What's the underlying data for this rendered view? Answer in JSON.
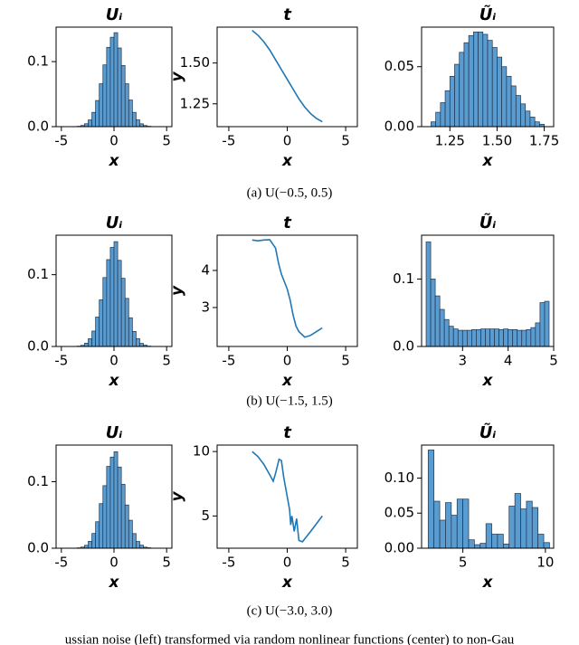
{
  "chart_data": [
    {
      "type": "histogram",
      "title": "Uᵢ",
      "x_label": "x",
      "color": "#5a9bd0",
      "bins": [
        -3.5,
        -3.15,
        -2.8,
        -2.45,
        -2.1,
        -1.75,
        -1.4,
        -1.05,
        -0.7,
        -0.35,
        0,
        0.35,
        0.7,
        1.05,
        1.4,
        1.75,
        2.1,
        2.45,
        2.8,
        3.15,
        3.5
      ],
      "values": [
        0.0006,
        0.0018,
        0.0045,
        0.0104,
        0.022,
        0.0402,
        0.066,
        0.095,
        0.122,
        0.1375,
        0.1445,
        0.121,
        0.094,
        0.066,
        0.041,
        0.022,
        0.0105,
        0.0044,
        0.0017,
        0.0006
      ],
      "xlim": [
        -5.5,
        5.5
      ],
      "xticks": [
        -5,
        0,
        5
      ],
      "ylim": [
        0,
        0.153
      ],
      "yticks": [
        {
          "value": 0,
          "label": "0.0"
        },
        0.1
      ]
    },
    {
      "type": "line",
      "title": "t",
      "x_label": "x",
      "y_label": "y",
      "color": "#1f77b4",
      "x": [
        -3,
        -2.5,
        -2,
        -1.5,
        -1,
        -0.5,
        0,
        0.5,
        1,
        1.5,
        2,
        2.5,
        3
      ],
      "values": [
        1.7,
        1.67,
        1.63,
        1.58,
        1.52,
        1.46,
        1.4,
        1.34,
        1.28,
        1.23,
        1.19,
        1.16,
        1.14
      ],
      "xlim": [
        -6,
        6
      ],
      "xticks": [
        -5,
        0,
        5
      ],
      "ylim": [
        1.11,
        1.72
      ],
      "yticks": [
        1.25,
        {
          "value": 1.5,
          "label": "1.50"
        }
      ]
    },
    {
      "type": "histogram",
      "title": "Ũᵢ",
      "x_label": "x",
      "color": "#5a9bd0",
      "bins": [
        1.15,
        1.175,
        1.2,
        1.225,
        1.25,
        1.275,
        1.3,
        1.325,
        1.35,
        1.375,
        1.4,
        1.425,
        1.45,
        1.475,
        1.5,
        1.525,
        1.55,
        1.575,
        1.6,
        1.625,
        1.65,
        1.675,
        1.7,
        1.725,
        1.75
      ],
      "values": [
        0.004,
        0.012,
        0.02,
        0.03,
        0.042,
        0.052,
        0.062,
        0.07,
        0.076,
        0.079,
        0.079,
        0.077,
        0.072,
        0.066,
        0.058,
        0.05,
        0.042,
        0.034,
        0.026,
        0.019,
        0.013,
        0.008,
        0.004,
        0.002
      ],
      "xlim": [
        1.1,
        1.8
      ],
      "xticks": [
        1.25,
        {
          "value": 1.5,
          "label": "1.50"
        },
        1.75
      ],
      "ylim": [
        0,
        0.083
      ],
      "yticks": [
        {
          "value": 0,
          "label": "0.00"
        },
        0.05
      ]
    },
    {
      "type": "histogram",
      "title": "Uᵢ",
      "x_label": "x",
      "color": "#5a9bd0",
      "bins": [
        -3.5,
        -3.15,
        -2.8,
        -2.45,
        -2.1,
        -1.75,
        -1.4,
        -1.05,
        -0.7,
        -0.35,
        0,
        0.35,
        0.7,
        1.05,
        1.4,
        1.75,
        2.1,
        2.45,
        2.8,
        3.15,
        3.5
      ],
      "values": [
        0.0005,
        0.0016,
        0.0046,
        0.0108,
        0.0215,
        0.041,
        0.065,
        0.096,
        0.121,
        0.138,
        0.146,
        0.12,
        0.095,
        0.067,
        0.04,
        0.021,
        0.011,
        0.0043,
        0.0018,
        0.0005
      ],
      "xlim": [
        -5.5,
        5.5
      ],
      "xticks": [
        -5,
        0,
        5
      ],
      "ylim": [
        0,
        0.155
      ],
      "yticks": [
        {
          "value": 0,
          "label": "0.0"
        },
        0.1
      ]
    },
    {
      "type": "line",
      "title": "t",
      "x_label": "x",
      "y_label": "y",
      "color": "#1f77b4",
      "x": [
        -3,
        -2.5,
        -2,
        -1.5,
        -1,
        -0.75,
        -0.5,
        -0.25,
        0,
        0.25,
        0.5,
        0.75,
        1,
        1.5,
        2,
        2.5,
        3
      ],
      "values": [
        4.82,
        4.8,
        4.82,
        4.83,
        4.6,
        4.2,
        3.9,
        3.7,
        3.5,
        3.2,
        2.8,
        2.5,
        2.35,
        2.2,
        2.25,
        2.35,
        2.45
      ],
      "xlim": [
        -6,
        6
      ],
      "xticks": [
        -5,
        0,
        5
      ],
      "ylim": [
        1.95,
        4.95
      ],
      "yticks": [
        3,
        4
      ]
    },
    {
      "type": "histogram",
      "title": "Ũᵢ",
      "x_label": "x",
      "color": "#5a9bd0",
      "bins": [
        2.2,
        2.3,
        2.4,
        2.5,
        2.6,
        2.7,
        2.8,
        2.9,
        3.0,
        3.1,
        3.2,
        3.3,
        3.4,
        3.5,
        3.6,
        3.7,
        3.8,
        3.9,
        4.0,
        4.1,
        4.2,
        4.3,
        4.4,
        4.5,
        4.6,
        4.7,
        4.8,
        4.9
      ],
      "values": [
        0.155,
        0.1,
        0.075,
        0.055,
        0.04,
        0.03,
        0.026,
        0.024,
        0.024,
        0.024,
        0.025,
        0.025,
        0.026,
        0.026,
        0.026,
        0.026,
        0.025,
        0.026,
        0.025,
        0.025,
        0.024,
        0.024,
        0.025,
        0.028,
        0.035,
        0.065,
        0.067
      ],
      "xlim": [
        2.1,
        5.0
      ],
      "xticks": [
        3,
        4,
        5
      ],
      "ylim": [
        0,
        0.165
      ],
      "yticks": [
        {
          "value": 0,
          "label": "0.0"
        },
        0.1
      ]
    },
    {
      "type": "histogram",
      "title": "Uᵢ",
      "x_label": "x",
      "color": "#5a9bd0",
      "bins": [
        -3.5,
        -3.15,
        -2.8,
        -2.45,
        -2.1,
        -1.75,
        -1.4,
        -1.05,
        -0.7,
        -0.35,
        0,
        0.35,
        0.7,
        1.05,
        1.4,
        1.75,
        2.1,
        2.45,
        2.8,
        3.15,
        3.5
      ],
      "values": [
        0.0006,
        0.0017,
        0.0044,
        0.0103,
        0.0222,
        0.0398,
        0.067,
        0.094,
        0.123,
        0.137,
        0.145,
        0.122,
        0.096,
        0.065,
        0.042,
        0.022,
        0.0102,
        0.0046,
        0.0016,
        0.0007
      ],
      "xlim": [
        -5.5,
        5.5
      ],
      "xticks": [
        -5,
        0,
        5
      ],
      "ylim": [
        0,
        0.155
      ],
      "yticks": [
        {
          "value": 0,
          "label": "0.0"
        },
        0.1
      ]
    },
    {
      "type": "line",
      "title": "t",
      "x_label": "x",
      "y_label": "y",
      "color": "#1f77b4",
      "x": [
        -3,
        -2.5,
        -2,
        -1.5,
        -1.2,
        -1,
        -0.7,
        -0.5,
        -0.3,
        0,
        0.2,
        0.3,
        0.4,
        0.6,
        0.8,
        1.0,
        1.3,
        2,
        3
      ],
      "values": [
        10,
        9.6,
        9.0,
        8.2,
        7.7,
        8.3,
        9.4,
        9.3,
        8.0,
        6.5,
        5.5,
        4.3,
        5.0,
        3.8,
        4.8,
        3.1,
        3.0,
        3.8,
        5.0
      ],
      "xlim": [
        -6,
        6
      ],
      "xticks": [
        -5,
        0,
        5
      ],
      "ylim": [
        2.5,
        10.5
      ],
      "yticks": [
        5,
        10
      ]
    },
    {
      "type": "histogram",
      "title": "Ũᵢ",
      "x_label": "x",
      "color": "#5a9bd0",
      "bins": [
        2.9,
        3.25,
        3.6,
        3.95,
        4.3,
        4.65,
        5.0,
        5.35,
        5.7,
        6.05,
        6.4,
        6.75,
        7.1,
        7.45,
        7.8,
        8.15,
        8.5,
        8.85,
        9.2,
        9.55,
        9.9,
        10.25
      ],
      "values": [
        0.14,
        0.067,
        0.04,
        0.065,
        0.047,
        0.07,
        0.07,
        0.012,
        0.005,
        0.007,
        0.035,
        0.02,
        0.02,
        0.006,
        0.06,
        0.078,
        0.056,
        0.067,
        0.058,
        0.02,
        0.008
      ],
      "xlim": [
        2.5,
        10.5
      ],
      "xticks": [
        5,
        10
      ],
      "ylim": [
        0,
        0.147
      ],
      "yticks": [
        {
          "value": 0,
          "label": "0.00"
        },
        0.05,
        {
          "value": 0.1,
          "label": "0.10"
        }
      ]
    }
  ],
  "captions": [
    "(a) U(−0.5, 0.5)",
    "(b) U(−1.5, 1.5)",
    "(c) U(−3.0, 3.0)"
  ],
  "footer": "ussian noise (left) transformed via random nonlinear functions (center) to non-Gau"
}
